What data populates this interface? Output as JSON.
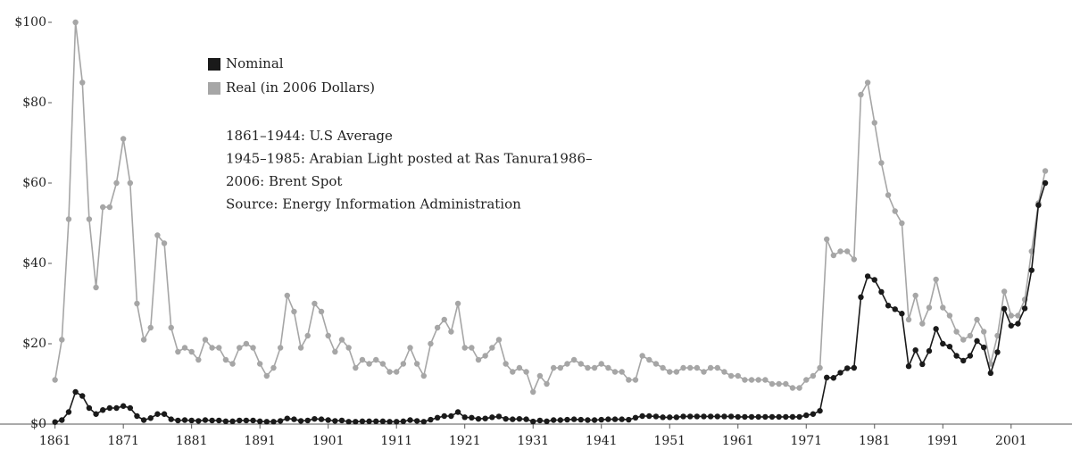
{
  "chart_data": {
    "type": "line",
    "x": [
      1861,
      1862,
      1863,
      1864,
      1865,
      1866,
      1867,
      1868,
      1869,
      1870,
      1871,
      1872,
      1873,
      1874,
      1875,
      1876,
      1877,
      1878,
      1879,
      1880,
      1881,
      1882,
      1883,
      1884,
      1885,
      1886,
      1887,
      1888,
      1889,
      1890,
      1891,
      1892,
      1893,
      1894,
      1895,
      1896,
      1897,
      1898,
      1899,
      1900,
      1901,
      1902,
      1903,
      1904,
      1905,
      1906,
      1907,
      1908,
      1909,
      1910,
      1911,
      1912,
      1913,
      1914,
      1915,
      1916,
      1917,
      1918,
      1919,
      1920,
      1921,
      1922,
      1923,
      1924,
      1925,
      1926,
      1927,
      1928,
      1929,
      1930,
      1931,
      1932,
      1933,
      1934,
      1935,
      1936,
      1937,
      1938,
      1939,
      1940,
      1941,
      1942,
      1943,
      1944,
      1945,
      1946,
      1947,
      1948,
      1949,
      1950,
      1951,
      1952,
      1953,
      1954,
      1955,
      1956,
      1957,
      1958,
      1959,
      1960,
      1961,
      1962,
      1963,
      1964,
      1965,
      1966,
      1967,
      1968,
      1969,
      1970,
      1971,
      1972,
      1973,
      1974,
      1975,
      1976,
      1977,
      1978,
      1979,
      1980,
      1981,
      1982,
      1983,
      1984,
      1985,
      1986,
      1987,
      1988,
      1989,
      1990,
      1991,
      1992,
      1993,
      1994,
      1995,
      1996,
      1997,
      1998,
      1999,
      2000,
      2001,
      2002,
      2003,
      2004,
      2005,
      2006
    ],
    "series": [
      {
        "name": "Real (in 2006 Dollars)",
        "color": "#a6a6a6",
        "values": [
          11,
          21,
          51,
          100,
          85,
          51,
          34,
          54,
          54,
          60,
          71,
          60,
          30,
          21,
          24,
          47,
          45,
          24,
          18,
          19,
          18,
          16,
          21,
          19,
          19,
          16,
          15,
          19,
          20,
          19,
          15,
          12,
          14,
          19,
          32,
          28,
          19,
          22,
          30,
          28,
          22,
          18,
          21,
          19,
          14,
          16,
          15,
          16,
          15,
          13,
          13,
          15,
          19,
          15,
          12,
          20,
          24,
          26,
          23,
          30,
          19,
          19,
          16,
          17,
          19,
          21,
          15,
          13,
          14,
          13,
          8,
          12,
          10,
          14,
          14,
          15,
          16,
          15,
          14,
          14,
          15,
          14,
          13,
          13,
          11,
          11,
          17,
          16,
          15,
          14,
          13,
          13,
          14,
          14,
          14,
          13,
          14,
          14,
          13,
          12,
          12,
          11,
          11,
          11,
          11,
          10,
          10,
          10,
          9,
          9,
          11,
          12,
          14,
          46,
          42,
          43,
          43,
          41,
          82,
          85,
          75,
          65,
          57,
          53,
          50,
          26,
          32,
          25,
          29,
          36,
          29,
          27,
          23,
          21,
          22,
          26,
          23,
          15,
          22,
          33,
          27,
          27,
          31,
          43,
          55,
          63
        ]
      },
      {
        "name": "Nominal",
        "color": "#1a1a1a",
        "values": [
          0.5,
          1,
          3,
          8,
          7,
          4,
          2.5,
          3.5,
          4,
          4,
          4.5,
          4,
          2,
          1,
          1.5,
          2.5,
          2.5,
          1.2,
          0.9,
          1,
          0.9,
          0.8,
          1,
          0.9,
          0.9,
          0.7,
          0.7,
          0.9,
          0.9,
          0.9,
          0.7,
          0.6,
          0.6,
          0.8,
          1.4,
          1.2,
          0.8,
          0.9,
          1.3,
          1.2,
          1,
          0.8,
          0.9,
          0.6,
          0.6,
          0.7,
          0.7,
          0.7,
          0.7,
          0.6,
          0.6,
          0.7,
          1,
          0.8,
          0.6,
          1.1,
          1.6,
          2,
          2,
          3,
          1.7,
          1.6,
          1.3,
          1.4,
          1.7,
          1.9,
          1.3,
          1.2,
          1.3,
          1.2,
          0.65,
          0.9,
          0.7,
          1,
          1,
          1.1,
          1.2,
          1.1,
          1,
          1,
          1.1,
          1.2,
          1.2,
          1.2,
          1.1,
          1.6,
          2,
          2,
          1.9,
          1.7,
          1.7,
          1.7,
          1.9,
          1.9,
          1.9,
          1.9,
          1.9,
          1.9,
          1.9,
          1.9,
          1.8,
          1.8,
          1.8,
          1.8,
          1.8,
          1.8,
          1.8,
          1.8,
          1.8,
          1.8,
          2.2,
          2.5,
          3.3,
          11.6,
          11.5,
          12.8,
          13.9,
          14,
          31.6,
          36.8,
          35.9,
          32.9,
          29.5,
          28.6,
          27.5,
          14.4,
          18.4,
          14.9,
          18.2,
          23.7,
          20,
          19.3,
          17,
          15.8,
          17,
          20.7,
          19.1,
          12.7,
          17.9,
          28.7,
          24.5,
          25,
          28.8,
          38.3,
          54.5,
          60
        ]
      }
    ],
    "legend_order": [
      "Nominal",
      "Real (in 2006 Dollars)"
    ],
    "annotations": [
      "1861–1944: U.S Average",
      "1945–1985: Arabian Light posted at Ras Tanura1986–",
      "2006: Brent Spot",
      "Source: Energy Information Administration"
    ],
    "xlim": [
      1860,
      2009
    ],
    "xticks": [
      1861,
      1871,
      1881,
      1891,
      1901,
      1911,
      1921,
      1931,
      1941,
      1951,
      1961,
      1971,
      1981,
      1991,
      2001
    ],
    "ylim": [
      0,
      100
    ],
    "yticks": [
      {
        "value": 0,
        "label": "$0"
      },
      {
        "value": 20,
        "label": "$20"
      },
      {
        "value": 40,
        "label": "$40"
      },
      {
        "value": 60,
        "label": "$60"
      },
      {
        "value": 80,
        "label": "$80"
      },
      {
        "value": 100,
        "label": "$100"
      }
    ],
    "grid": false
  }
}
